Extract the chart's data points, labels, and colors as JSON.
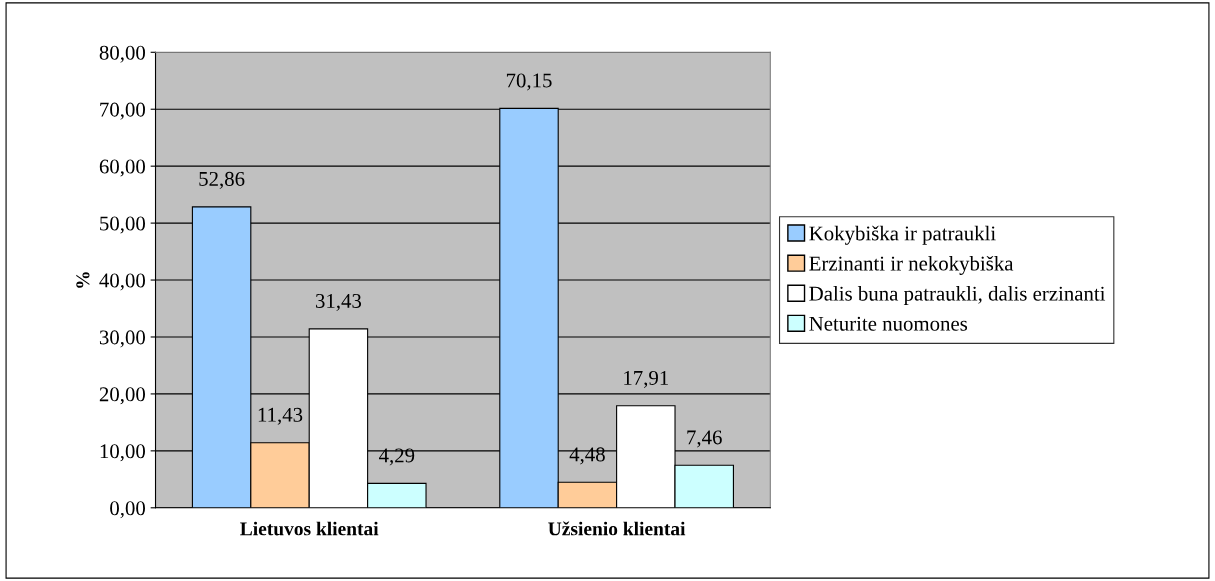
{
  "chart_data": {
    "type": "bar",
    "ylabel": "%",
    "categories": [
      "Lietuvos klientai",
      "Užsienio klientai"
    ],
    "series": [
      {
        "name": "Kokybiška ir patraukli",
        "color": "#99ccff",
        "values": [
          52.86,
          70.15
        ],
        "value_labels": [
          "52,86",
          "70,15"
        ]
      },
      {
        "name": "Erzinanti ir nekokybiška",
        "color": "#ffcc99",
        "values": [
          11.43,
          4.48
        ],
        "value_labels": [
          "11,43",
          "4,48"
        ]
      },
      {
        "name": "Dalis buna patraukli, dalis erzinanti",
        "color": "#ffffff",
        "values": [
          31.43,
          17.91
        ],
        "value_labels": [
          "31,43",
          "17,91"
        ]
      },
      {
        "name": "Neturite nuomones",
        "color": "#ccffff",
        "values": [
          4.29,
          7.46
        ],
        "value_labels": [
          "4,29",
          "7,46"
        ]
      }
    ],
    "ylim": [
      0,
      80
    ],
    "yticks": [
      {
        "value": 0,
        "label": "0,00"
      },
      {
        "value": 10,
        "label": "10,00"
      },
      {
        "value": 20,
        "label": "20,00"
      },
      {
        "value": 30,
        "label": "30,00"
      },
      {
        "value": 40,
        "label": "40,00"
      },
      {
        "value": 50,
        "label": "50,00"
      },
      {
        "value": 60,
        "label": "60,00"
      },
      {
        "value": 70,
        "label": "70,00"
      },
      {
        "value": 80,
        "label": "80,00"
      }
    ],
    "grid": "y",
    "legend": "right"
  }
}
